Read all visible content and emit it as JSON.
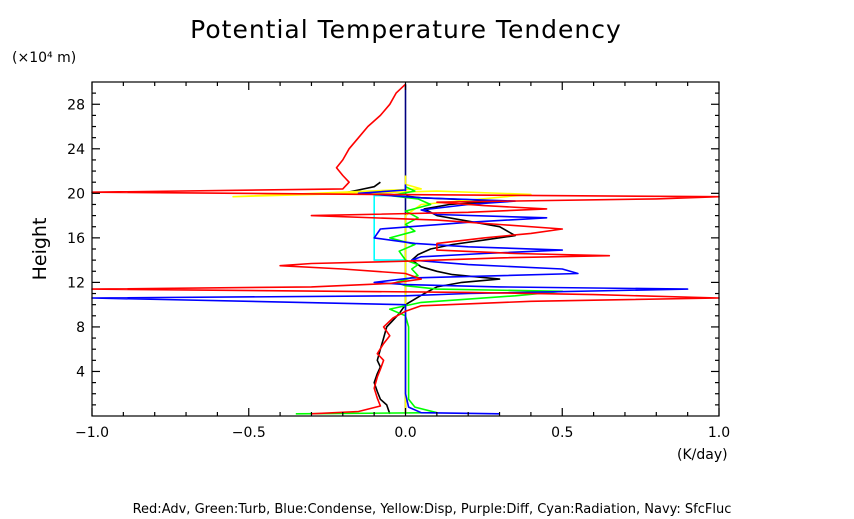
{
  "chart_data": {
    "type": "line",
    "title": "Potential Temperature Tendency",
    "ylabel": "Height",
    "yunit": "(×10⁴ m)",
    "xunit": "(K/day)",
    "legend_text": "Red:Adv, Green:Turb, Blue:Condense, Yellow:Disp, Purple:Diff, Cyan:Radiation, Navy: SfcFluc",
    "legend_placement": "bottom",
    "xlim": [
      -1.0,
      1.0
    ],
    "ylim": [
      0,
      30
    ],
    "x_ticks": [
      -1.0,
      -0.5,
      0.0,
      0.5,
      1.0
    ],
    "x_tick_labels": [
      "−1.0",
      "−0.5",
      "0.0",
      "0.5",
      "1.0"
    ],
    "y_ticks": [
      4,
      8,
      12,
      16,
      20,
      24,
      28
    ],
    "y_tick_labels": [
      "4",
      "8",
      "12",
      "16",
      "20",
      "24",
      "28"
    ],
    "grid": false,
    "colors": {
      "Adv": "#ff0000",
      "Turb": "#00ff00",
      "Condense": "#0000ff",
      "Disp": "#ffff00",
      "Radiation": "#00ffff",
      "SfcFluc": "#000080",
      "Total": "#000000"
    },
    "series": [
      {
        "color": "#000000",
        "points": [
          [
            -0.05,
            0.2
          ],
          [
            -0.06,
            1.0
          ],
          [
            -0.08,
            1.5
          ],
          [
            -0.09,
            2.2
          ],
          [
            -0.1,
            3.0
          ],
          [
            -0.09,
            3.8
          ],
          [
            -0.08,
            4.4
          ],
          [
            -0.09,
            5.0
          ],
          [
            -0.08,
            6.0
          ],
          [
            -0.07,
            7.0
          ],
          [
            -0.06,
            8.0
          ],
          [
            -0.04,
            8.6
          ],
          [
            -0.02,
            9.2
          ],
          [
            0.0,
            10.0
          ],
          [
            0.03,
            10.5
          ],
          [
            0.06,
            11.0
          ],
          [
            0.1,
            11.6
          ],
          [
            0.18,
            12.0
          ],
          [
            0.3,
            12.3
          ],
          [
            0.15,
            12.7
          ],
          [
            0.1,
            13.0
          ],
          [
            0.05,
            13.4
          ],
          [
            0.02,
            14.0
          ],
          [
            0.04,
            14.5
          ],
          [
            0.08,
            15.0
          ],
          [
            0.15,
            15.4
          ],
          [
            0.25,
            15.8
          ],
          [
            0.35,
            16.2
          ],
          [
            0.3,
            17.0
          ],
          [
            0.18,
            17.6
          ],
          [
            0.1,
            18.0
          ],
          [
            0.06,
            18.6
          ],
          [
            0.14,
            19.0
          ],
          [
            0.3,
            19.3
          ],
          [
            0.05,
            19.6
          ],
          [
            -0.05,
            19.9
          ],
          [
            -0.2,
            20.0
          ],
          [
            -0.15,
            20.3
          ],
          [
            -0.1,
            20.6
          ],
          [
            -0.08,
            21.0
          ]
        ]
      },
      {
        "color": "#000080",
        "points": [
          [
            0.0,
            0.2
          ],
          [
            0.0,
            29.8
          ]
        ]
      },
      {
        "color": "#00ffff",
        "points": [
          [
            -0.1,
            19.8
          ],
          [
            0.0,
            19.8
          ],
          [
            -0.1,
            19.8
          ],
          [
            -0.1,
            14.0
          ],
          [
            0.0,
            14.0
          ]
        ]
      },
      {
        "color": "#ffff00",
        "points": [
          [
            0.0,
            0.2
          ],
          [
            0.0,
            18.0
          ],
          [
            0.05,
            19.0
          ],
          [
            0.4,
            19.9
          ],
          [
            0.1,
            20.2
          ],
          [
            -0.55,
            19.7
          ],
          [
            0.05,
            20.4
          ],
          [
            0.0,
            20.8
          ],
          [
            0.0,
            21.6
          ]
        ]
      },
      {
        "color": "#00ff00",
        "points": [
          [
            -0.35,
            0.2
          ],
          [
            0.1,
            0.3
          ],
          [
            0.03,
            0.8
          ],
          [
            0.01,
            1.5
          ],
          [
            0.01,
            3.0
          ],
          [
            0.01,
            8.0
          ],
          [
            0.0,
            9.0
          ],
          [
            -0.05,
            9.6
          ],
          [
            0.05,
            10.2
          ],
          [
            0.35,
            10.8
          ],
          [
            0.5,
            11.2
          ],
          [
            0.1,
            11.4
          ],
          [
            0.0,
            11.7
          ],
          [
            -0.03,
            12.0
          ],
          [
            0.04,
            12.6
          ],
          [
            0.02,
            13.2
          ],
          [
            0.04,
            13.6
          ],
          [
            0.0,
            14.0
          ],
          [
            -0.02,
            14.8
          ],
          [
            0.03,
            15.4
          ],
          [
            -0.05,
            16.0
          ],
          [
            0.03,
            16.6
          ],
          [
            0.0,
            17.2
          ],
          [
            0.04,
            17.8
          ],
          [
            0.0,
            18.4
          ],
          [
            0.08,
            19.0
          ],
          [
            0.04,
            19.5
          ],
          [
            -0.05,
            19.8
          ],
          [
            0.03,
            20.2
          ],
          [
            0.0,
            20.6
          ]
        ]
      },
      {
        "color": "#0000ff",
        "points": [
          [
            0.3,
            0.2
          ],
          [
            0.05,
            0.3
          ],
          [
            0.01,
            0.8
          ],
          [
            0.0,
            2.0
          ],
          [
            0.0,
            8.0
          ],
          [
            0.0,
            10.0
          ],
          [
            -1.0,
            10.6
          ],
          [
            0.0,
            10.8
          ],
          [
            0.2,
            11.0
          ],
          [
            0.9,
            11.4
          ],
          [
            0.3,
            11.6
          ],
          [
            0.0,
            11.8
          ],
          [
            -0.1,
            12.0
          ],
          [
            0.02,
            12.4
          ],
          [
            0.3,
            12.6
          ],
          [
            0.55,
            12.8
          ],
          [
            0.5,
            13.2
          ],
          [
            0.2,
            13.6
          ],
          [
            0.02,
            14.0
          ],
          [
            0.05,
            14.3
          ],
          [
            0.25,
            14.6
          ],
          [
            0.5,
            14.9
          ],
          [
            0.2,
            15.2
          ],
          [
            0.03,
            15.5
          ],
          [
            -0.1,
            16.0
          ],
          [
            -0.08,
            16.8
          ],
          [
            0.2,
            17.4
          ],
          [
            0.45,
            17.8
          ],
          [
            0.1,
            18.1
          ],
          [
            0.05,
            18.5
          ],
          [
            0.2,
            19.0
          ],
          [
            0.35,
            19.3
          ],
          [
            0.05,
            19.6
          ],
          [
            -0.15,
            20.0
          ],
          [
            0.0,
            20.3
          ],
          [
            0.0,
            20.8
          ]
        ]
      },
      {
        "color": "#ff0000",
        "points": [
          [
            -0.3,
            0.2
          ],
          [
            -0.15,
            0.4
          ],
          [
            -0.08,
            0.9
          ],
          [
            -0.09,
            1.6
          ],
          [
            -0.1,
            2.5
          ],
          [
            -0.09,
            3.5
          ],
          [
            -0.08,
            4.2
          ],
          [
            -0.07,
            5.0
          ],
          [
            -0.09,
            5.6
          ],
          [
            -0.07,
            6.5
          ],
          [
            -0.05,
            7.2
          ],
          [
            -0.07,
            8.0
          ],
          [
            -0.04,
            8.8
          ],
          [
            0.0,
            9.4
          ],
          [
            0.05,
            9.9
          ],
          [
            0.4,
            10.3
          ],
          [
            1.0,
            10.6
          ],
          [
            0.6,
            10.9
          ],
          [
            0.2,
            11.1
          ],
          [
            -1.0,
            11.4
          ],
          [
            -0.3,
            11.6
          ],
          [
            -0.05,
            11.9
          ],
          [
            0.05,
            12.3
          ],
          [
            0.0,
            12.8
          ],
          [
            -0.2,
            13.2
          ],
          [
            -0.4,
            13.5
          ],
          [
            -0.3,
            13.7
          ],
          [
            0.0,
            13.9
          ],
          [
            0.3,
            14.2
          ],
          [
            0.65,
            14.4
          ],
          [
            0.35,
            14.6
          ],
          [
            0.1,
            14.9
          ],
          [
            0.1,
            15.5
          ],
          [
            0.25,
            16.0
          ],
          [
            0.4,
            16.4
          ],
          [
            0.5,
            16.8
          ],
          [
            0.3,
            17.2
          ],
          [
            0.1,
            17.6
          ],
          [
            -0.3,
            18.0
          ],
          [
            0.2,
            18.3
          ],
          [
            0.45,
            18.6
          ],
          [
            0.25,
            18.9
          ],
          [
            0.1,
            19.2
          ],
          [
            0.8,
            19.5
          ],
          [
            1.0,
            19.7
          ],
          [
            -0.1,
            19.9
          ],
          [
            -1.0,
            20.1
          ],
          [
            -0.2,
            20.4
          ],
          [
            -0.18,
            21.0
          ],
          [
            -0.2,
            21.6
          ],
          [
            -0.22,
            22.3
          ],
          [
            -0.2,
            23.0
          ],
          [
            -0.18,
            24.0
          ],
          [
            -0.15,
            25.0
          ],
          [
            -0.12,
            26.0
          ],
          [
            -0.08,
            27.0
          ],
          [
            -0.05,
            28.0
          ],
          [
            -0.03,
            29.0
          ],
          [
            0.0,
            29.8
          ]
        ]
      }
    ]
  }
}
